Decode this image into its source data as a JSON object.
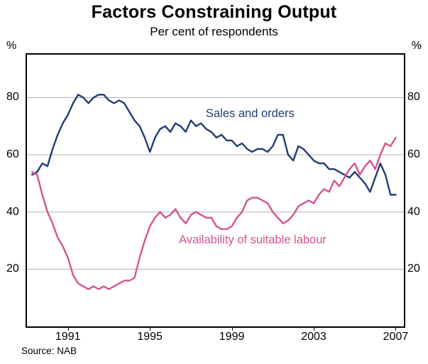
{
  "chart": {
    "title": "Factors Constraining Output",
    "subtitle": "Per cent of respondents",
    "unit_left": "%",
    "unit_right": "%",
    "source": "Source: NAB",
    "series_labels": {
      "sales": "Sales and orders",
      "labour": "Availability of suitable labour"
    }
  },
  "chart_data": {
    "type": "line",
    "title": "Factors Constraining Output",
    "subtitle": "Per cent of respondents",
    "ylabel": "%",
    "source": "Source: NAB",
    "ylim": [
      0,
      95
    ],
    "yticks": [
      20,
      40,
      60,
      80
    ],
    "xlim": [
      1989.0,
      2007.4
    ],
    "xticks": [
      1991,
      1995,
      1999,
      2003,
      2007
    ],
    "grid": true,
    "grid_color": "#b3b3b3",
    "frame_color": "#000000",
    "legend_position": "inline",
    "x_frequency": "quarterly",
    "x": [
      1989.25,
      1989.5,
      1989.75,
      1990.0,
      1990.25,
      1990.5,
      1990.75,
      1991.0,
      1991.25,
      1991.5,
      1991.75,
      1992.0,
      1992.25,
      1992.5,
      1992.75,
      1993.0,
      1993.25,
      1993.5,
      1993.75,
      1994.0,
      1994.25,
      1994.5,
      1994.75,
      1995.0,
      1995.25,
      1995.5,
      1995.75,
      1996.0,
      1996.25,
      1996.5,
      1996.75,
      1997.0,
      1997.25,
      1997.5,
      1997.75,
      1998.0,
      1998.25,
      1998.5,
      1998.75,
      1999.0,
      1999.25,
      1999.5,
      1999.75,
      2000.0,
      2000.25,
      2000.5,
      2000.75,
      2001.0,
      2001.25,
      2001.5,
      2001.75,
      2002.0,
      2002.25,
      2002.5,
      2002.75,
      2003.0,
      2003.25,
      2003.5,
      2003.75,
      2004.0,
      2004.25,
      2004.5,
      2004.75,
      2005.0,
      2005.25,
      2005.5,
      2005.75,
      2006.0,
      2006.25,
      2006.5,
      2006.75,
      2007.0
    ],
    "series": [
      {
        "name": "Sales and orders",
        "color": "#223c72",
        "values": [
          53,
          54,
          57,
          56,
          62,
          67,
          71,
          74,
          78,
          81,
          80,
          78,
          80,
          81,
          81,
          79,
          78,
          79,
          78,
          75,
          72,
          70,
          66,
          61,
          66,
          69,
          70,
          68,
          71,
          70,
          68,
          72,
          70,
          71,
          69,
          68,
          66,
          67,
          65,
          65,
          63,
          64,
          62,
          61,
          62,
          62,
          61,
          63,
          67,
          67,
          60,
          58,
          63,
          62,
          60,
          58,
          57,
          57,
          55,
          55,
          54,
          53,
          52,
          54,
          52,
          50,
          47,
          52,
          57,
          53,
          46,
          46
        ]
      },
      {
        "name": "Availability of suitable labour",
        "color": "#d5538f",
        "values": [
          54,
          53,
          46,
          40,
          36,
          31,
          28,
          24,
          18,
          15,
          14,
          13,
          14,
          13,
          14,
          13,
          14,
          15,
          16,
          16,
          17,
          24,
          30,
          35,
          38,
          40,
          38,
          39,
          41,
          38,
          36,
          39,
          40,
          39,
          38,
          38,
          35,
          34,
          34,
          35,
          38,
          40,
          44,
          45,
          45,
          44,
          43,
          40,
          38,
          36,
          37,
          39,
          42,
          43,
          44,
          43,
          46,
          48,
          47,
          51,
          49,
          52,
          55,
          57,
          53,
          56,
          58,
          55,
          60,
          64,
          63,
          66
        ]
      }
    ]
  }
}
